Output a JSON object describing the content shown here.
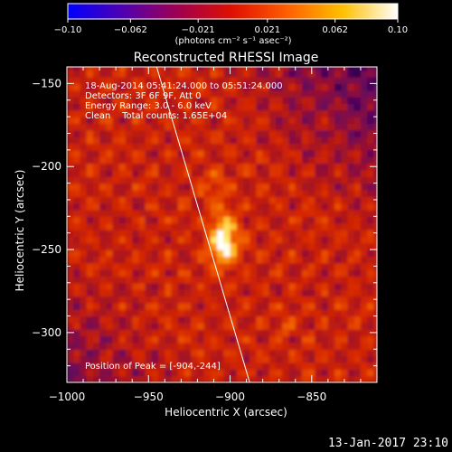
{
  "chart_data": {
    "type": "heatmap",
    "title": "Reconstructed RHESSI Image",
    "xlabel": "Heliocentric X (arcsec)",
    "ylabel": "Heliocentric Y (arcsec)",
    "xlim": [
      -1000,
      -810
    ],
    "ylim": [
      -330,
      -140
    ],
    "x_ticks": [
      -1000,
      -950,
      -900,
      -850
    ],
    "x_tick_labels": [
      "−1000",
      "−950",
      "−900",
      "−850"
    ],
    "y_ticks": [
      -150,
      -200,
      -250,
      -300
    ],
    "y_tick_labels": [
      "−150",
      "−200",
      "−250",
      "−300"
    ],
    "colorbar": {
      "range": [
        -0.1,
        0.1
      ],
      "tick_labels": [
        "−0.10",
        "−0.062",
        "−0.021",
        "0.021",
        "0.062",
        "0.10"
      ],
      "label": "(photons cm⁻² s⁻¹ asec⁻²)",
      "colors": [
        "#0000ff",
        "#5000b0",
        "#a00050",
        "#e01000",
        "#ff6000",
        "#ffc000",
        "#ffffff"
      ]
    },
    "peak": {
      "x": -904,
      "y": -244
    },
    "annotations": [
      "18-Aug-2014 05:41:24.000 to 05:51:24.000",
      "Detectors: 3F 6F 9F, Att 0",
      "Energy Range: 3.0 - 6.0 keV",
      "Clean    Total counts: 1.65E+04",
      "Position of Peak = [-904,-244]"
    ],
    "limb_line": [
      [
        -945,
        -140
      ],
      [
        -888,
        -330
      ]
    ],
    "grid": false
  },
  "timestamp": "13-Jan-2017 23:10"
}
